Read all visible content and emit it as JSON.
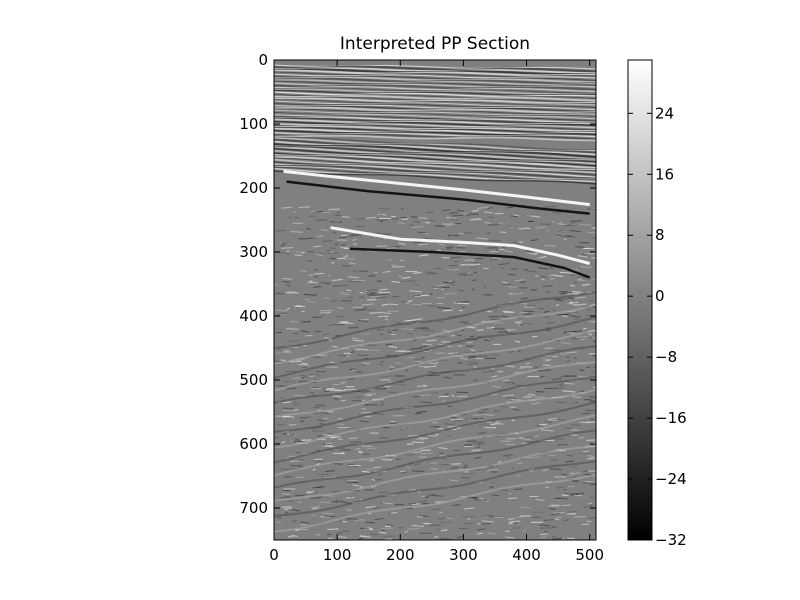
{
  "chart_data": {
    "type": "heatmap",
    "title": "Interpreted PP Section",
    "xlabel": "",
    "ylabel": "",
    "xlim": [
      0,
      510
    ],
    "ylim": [
      750,
      0
    ],
    "x_ticks": [
      0,
      100,
      200,
      300,
      400,
      500
    ],
    "y_ticks": [
      0,
      100,
      200,
      300,
      400,
      500,
      600,
      700
    ],
    "colormap": "gray",
    "colors": {
      "low": "#000000",
      "high": "#ffffff",
      "mid": "#808080"
    },
    "colorbar": {
      "min": -32,
      "max": 31,
      "ticks": [
        -32,
        -24,
        -16,
        -8,
        0,
        8,
        16,
        24
      ],
      "tick_labels": [
        "−32",
        "−24",
        "−16",
        "−8",
        "0",
        "8",
        "16",
        "24"
      ],
      "placement": "right"
    },
    "reflectors": [
      {
        "name": "",
        "points": [
          [
            15,
            174
          ],
          [
            100,
            183
          ],
          [
            200,
            193
          ],
          [
            300,
            203
          ],
          [
            400,
            214
          ],
          [
            500,
            226
          ]
        ],
        "polarity": "bright"
      },
      {
        "name": "",
        "points": [
          [
            20,
            190
          ],
          [
            150,
            205
          ],
          [
            300,
            218
          ],
          [
            420,
            232
          ],
          [
            500,
            240
          ]
        ],
        "polarity": "dark"
      },
      {
        "name": "",
        "points": [
          [
            90,
            262
          ],
          [
            200,
            280
          ],
          [
            300,
            285
          ],
          [
            380,
            290
          ],
          [
            450,
            305
          ],
          [
            500,
            318
          ]
        ],
        "polarity": "bright"
      },
      {
        "name": "",
        "points": [
          [
            120,
            295
          ],
          [
            250,
            300
          ],
          [
            380,
            308
          ],
          [
            460,
            325
          ],
          [
            500,
            340
          ]
        ],
        "polarity": "dark"
      }
    ],
    "grid": false
  }
}
